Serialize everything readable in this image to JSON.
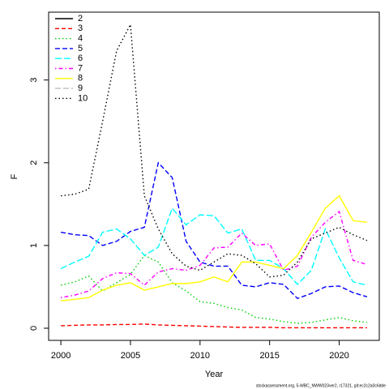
{
  "chart_data": {
    "type": "line",
    "xlabel": "Year",
    "ylabel": "F",
    "footnote": "stockassessment.org, 5-WBC_NWW023ver2, r17321, git:ec2c2a0c6dde",
    "x": [
      2000,
      2001,
      2002,
      2003,
      2004,
      2005,
      2006,
      2007,
      2008,
      2009,
      2010,
      2011,
      2012,
      2013,
      2014,
      2015,
      2016,
      2017,
      2018,
      2019,
      2020,
      2021,
      2022
    ],
    "series": [
      {
        "name": "2",
        "color": "#000000",
        "values": [
          null,
          null,
          null,
          null,
          null,
          null,
          null,
          null,
          null,
          null,
          null,
          null,
          null,
          null,
          null,
          null,
          null,
          null,
          null,
          null,
          null,
          null,
          null
        ]
      },
      {
        "name": "3",
        "color": "#ff0000",
        "values": [
          0.03,
          0.035,
          0.04,
          0.04,
          0.045,
          0.045,
          0.05,
          0.04,
          0.035,
          0.03,
          0.025,
          0.02,
          0.015,
          0.01,
          0.01,
          0.01,
          0.005,
          0.005,
          0.005,
          0.005,
          0.005,
          0.005,
          0.005
        ]
      },
      {
        "name": "4",
        "color": "#00cd00",
        "values": [
          0.52,
          0.56,
          0.63,
          0.45,
          0.55,
          0.65,
          0.88,
          0.8,
          0.55,
          0.45,
          0.32,
          0.3,
          0.25,
          0.22,
          0.13,
          0.11,
          0.08,
          0.06,
          0.07,
          0.1,
          0.13,
          0.09,
          0.07
        ]
      },
      {
        "name": "5",
        "color": "#0000ff",
        "values": [
          1.16,
          1.13,
          1.12,
          1.0,
          1.05,
          1.17,
          1.22,
          2.0,
          1.82,
          1.05,
          0.8,
          0.75,
          0.75,
          0.52,
          0.5,
          0.55,
          0.53,
          0.36,
          0.42,
          0.5,
          0.51,
          0.43,
          0.38
        ]
      },
      {
        "name": "6",
        "color": "#00ffff",
        "values": [
          0.72,
          0.8,
          0.87,
          1.16,
          1.2,
          1.08,
          0.88,
          0.98,
          1.45,
          1.25,
          1.37,
          1.36,
          1.15,
          1.2,
          0.82,
          0.82,
          0.72,
          0.53,
          0.7,
          1.2,
          0.85,
          0.56,
          0.52
        ]
      },
      {
        "name": "7",
        "color": "#ff00ff",
        "values": [
          0.37,
          0.4,
          0.45,
          0.6,
          0.67,
          0.66,
          0.52,
          0.68,
          0.72,
          0.7,
          0.76,
          0.97,
          0.98,
          1.15,
          1.0,
          1.02,
          0.7,
          0.75,
          1.1,
          1.28,
          1.41,
          0.82,
          0.77
        ]
      },
      {
        "name": "8",
        "color": "#ffff00",
        "values": [
          0.33,
          0.35,
          0.37,
          0.46,
          0.52,
          0.55,
          0.46,
          0.5,
          0.54,
          0.54,
          0.56,
          0.62,
          0.56,
          0.8,
          0.8,
          0.76,
          0.72,
          0.88,
          1.16,
          1.45,
          1.6,
          1.3,
          1.28
        ]
      },
      {
        "name": "9",
        "color": "#bebebe",
        "values": [
          null,
          null,
          null,
          null,
          null,
          null,
          null,
          null,
          null,
          null,
          null,
          null,
          null,
          null,
          null,
          null,
          null,
          null,
          null,
          null,
          null,
          null,
          null
        ]
      },
      {
        "name": "10",
        "color": "#000000",
        "values": [
          1.6,
          1.62,
          1.68,
          2.5,
          3.35,
          3.67,
          1.6,
          1.2,
          0.9,
          0.75,
          0.7,
          0.8,
          0.9,
          0.88,
          0.78,
          0.62,
          0.64,
          0.8,
          1.08,
          1.15,
          1.22,
          1.13,
          1.06
        ]
      }
    ],
    "xlim": [
      1999.12,
      2022.88
    ],
    "ylim": [
      -0.147,
      3.82
    ],
    "xticks": [
      2000,
      2005,
      2010,
      2015,
      2020
    ],
    "yticks": [
      0,
      1,
      2,
      3
    ],
    "legend": "top-left",
    "grid": false
  }
}
